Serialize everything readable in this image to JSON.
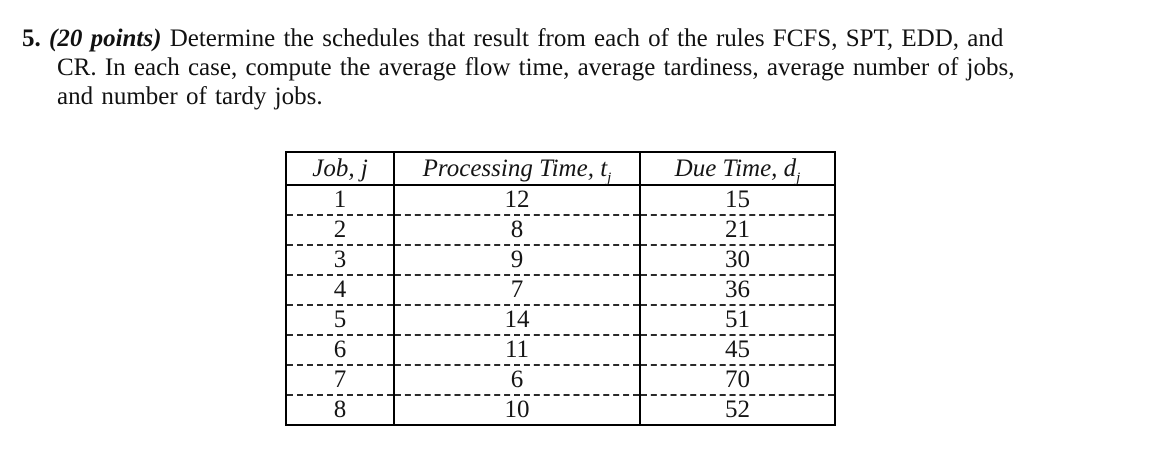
{
  "problem": {
    "number": "5.",
    "points": "(20 points)",
    "line1": "Determine the schedules that result from each of the rules FCFS, SPT, EDD, and",
    "line2": "CR. In each case, compute the average flow time, average tardiness, average number of jobs,",
    "line3": "and number of tardy jobs."
  },
  "table": {
    "headers": [
      {
        "text": "Job, j",
        "sub": ""
      },
      {
        "text": "Processing Time, t",
        "sub": "j"
      },
      {
        "text": "Due Time, d",
        "sub": "j"
      }
    ],
    "rows": [
      [
        "1",
        "12",
        "15"
      ],
      [
        "2",
        "8",
        "21"
      ],
      [
        "3",
        "9",
        "30"
      ],
      [
        "4",
        "7",
        "36"
      ],
      [
        "5",
        "14",
        "51"
      ],
      [
        "6",
        "11",
        "45"
      ],
      [
        "7",
        "6",
        "70"
      ],
      [
        "8",
        "10",
        "52"
      ]
    ]
  }
}
